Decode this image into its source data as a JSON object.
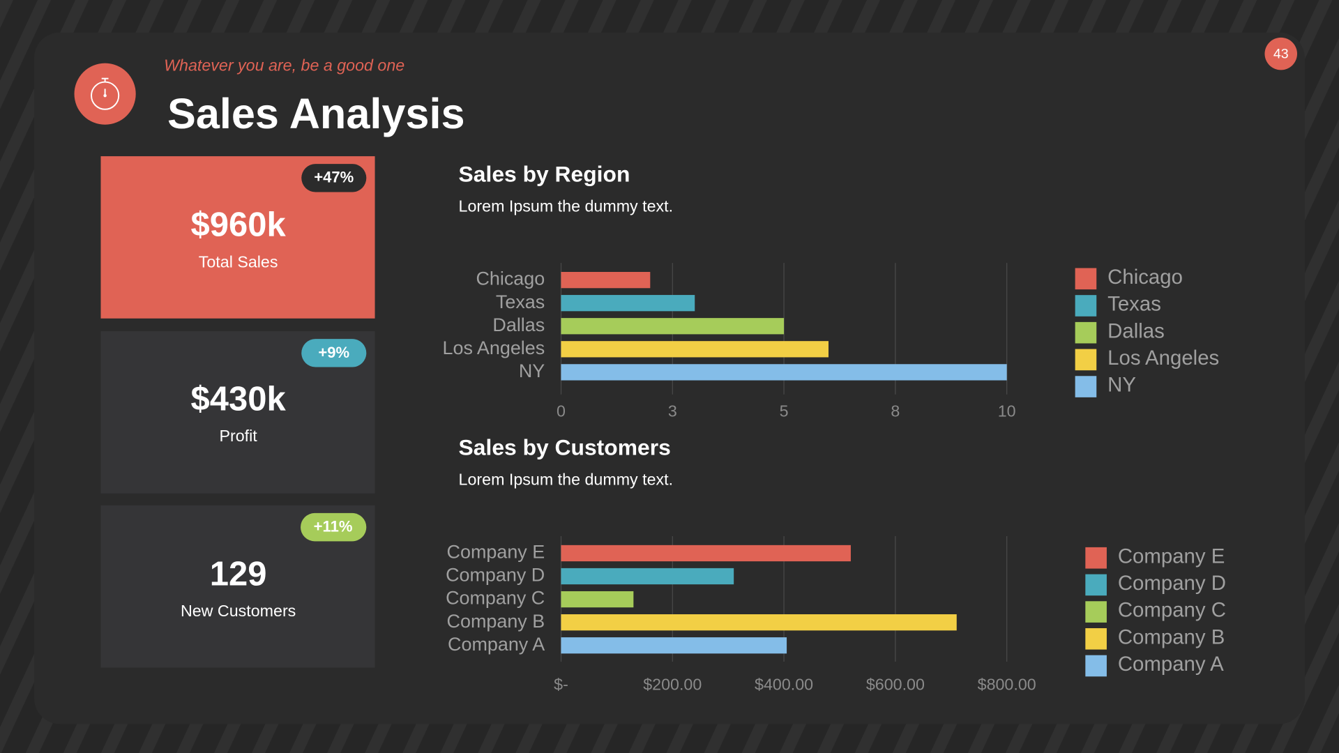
{
  "header": {
    "subtitle": "Whatever you are, be a good one",
    "title": "Sales Analysis",
    "page_number": "43"
  },
  "cards": [
    {
      "badge": "+47%",
      "value": "$960k",
      "label": "Total Sales"
    },
    {
      "badge": "+9%",
      "value": "$430k",
      "label": "Profit"
    },
    {
      "badge": "+11%",
      "value": "129",
      "label": "New Customers"
    }
  ],
  "chart_data": [
    {
      "type": "bar",
      "orientation": "horizontal",
      "title": "Sales by Region",
      "subtitle": "Lorem Ipsum the dummy text.",
      "categories": [
        "Chicago",
        "Texas",
        "Dallas",
        "Los Angeles",
        "NY"
      ],
      "values": [
        2,
        3,
        5,
        6,
        10
      ],
      "colors": [
        "#e06355",
        "#4aabbd",
        "#a6cc5a",
        "#f2cf45",
        "#84bde8"
      ],
      "xlim": [
        0,
        10
      ],
      "xticks": [
        0,
        {
          "value": 2.5,
          "label": "3"
        },
        5,
        {
          "value": 7.5,
          "label": "8"
        },
        10
      ],
      "grid": true,
      "legend": "right"
    },
    {
      "type": "bar",
      "orientation": "horizontal",
      "title": "Sales by Customers",
      "subtitle": "Lorem Ipsum the dummy text.",
      "categories": [
        "Company E",
        "Company D",
        "Company C",
        "Company B",
        "Company A"
      ],
      "values": [
        520,
        310,
        130,
        710,
        405
      ],
      "colors": [
        "#e06355",
        "#4aabbd",
        "#a6cc5a",
        "#f2cf45",
        "#84bde8"
      ],
      "xlim": [
        0,
        800
      ],
      "xticks": [
        {
          "value": 0,
          "label": "$-"
        },
        {
          "value": 200,
          "label": "$200.00"
        },
        {
          "value": 400,
          "label": "$400.00"
        },
        {
          "value": 600,
          "label": "$600.00"
        },
        {
          "value": 800,
          "label": "$800.00"
        }
      ],
      "grid": true,
      "legend": "right"
    }
  ]
}
